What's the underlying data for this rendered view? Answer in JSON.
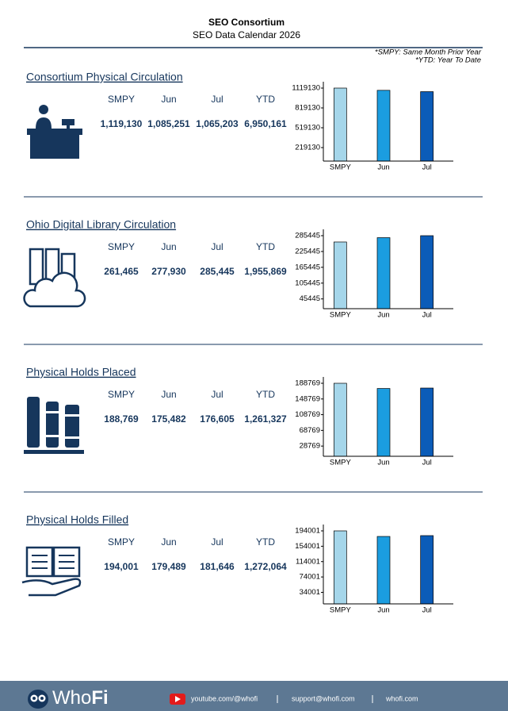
{
  "header": {
    "title": "SEO Consortium",
    "subtitle": "SEO Data Calendar 2026",
    "notes": [
      "*SMPY: Same Month Prior Year",
      "*YTD: Year To Date"
    ]
  },
  "sections": [
    {
      "title": "Consortium Physical Circulation",
      "columns": [
        "SMPY",
        "Jun",
        "Jul",
        "YTD"
      ],
      "cells": [
        "1,119,130",
        "1,085,251",
        "1,065,203",
        "6,950,161"
      ]
    },
    {
      "title": "Ohio Digital Library Circulation",
      "columns": [
        "SMPY",
        "Jun",
        "Jul",
        "YTD"
      ],
      "cells": [
        "261,465",
        "277,930",
        "285,445",
        "1,955,869"
      ]
    },
    {
      "title": "Physical Holds Placed",
      "columns": [
        "SMPY",
        "Jun",
        "Jul",
        "YTD"
      ],
      "cells": [
        "188,769",
        "175,482",
        "176,605",
        "1,261,327"
      ]
    },
    {
      "title": "Physical Holds Filled",
      "columns": [
        "SMPY",
        "Jun",
        "Jul",
        "YTD"
      ],
      "cells": [
        "194,001",
        "179,489",
        "181,646",
        "1,272,064"
      ]
    }
  ],
  "chart_data": [
    {
      "type": "bar",
      "categories": [
        "SMPY",
        "Jun",
        "Jul"
      ],
      "values": [
        1119130,
        1085251,
        1065203
      ],
      "colors": [
        "#a5d6ea",
        "#1b9de0",
        "#0b5cb8"
      ],
      "ylim": [
        15130,
        1119130
      ],
      "yticks": [
        219130,
        519130,
        819130,
        1119130
      ]
    },
    {
      "type": "bar",
      "categories": [
        "SMPY",
        "Jun",
        "Jul"
      ],
      "values": [
        261465,
        277930,
        285445
      ],
      "colors": [
        "#a5d6ea",
        "#1b9de0",
        "#0b5cb8"
      ],
      "ylim": [
        8445,
        285445
      ],
      "yticks": [
        45445,
        105445,
        165445,
        225445,
        285445
      ]
    },
    {
      "type": "bar",
      "categories": [
        "SMPY",
        "Jun",
        "Jul"
      ],
      "values": [
        188769,
        175482,
        176605
      ],
      "colors": [
        "#a5d6ea",
        "#1b9de0",
        "#0b5cb8"
      ],
      "ylim": [
        2769,
        188769
      ],
      "yticks": [
        28769,
        68769,
        108769,
        148769,
        188769
      ]
    },
    {
      "type": "bar",
      "categories": [
        "SMPY",
        "Jun",
        "Jul"
      ],
      "values": [
        194001,
        179489,
        181646
      ],
      "colors": [
        "#a5d6ea",
        "#1b9de0",
        "#0b5cb8"
      ],
      "ylim": [
        4001,
        194001
      ],
      "yticks": [
        34001,
        74001,
        114001,
        154001,
        194001
      ]
    }
  ],
  "footer": {
    "brand": {
      "light": "Who",
      "bold": "Fi"
    },
    "links": [
      "youtube.com/@whofi",
      "support@whofi.com",
      "whofi.com"
    ]
  }
}
